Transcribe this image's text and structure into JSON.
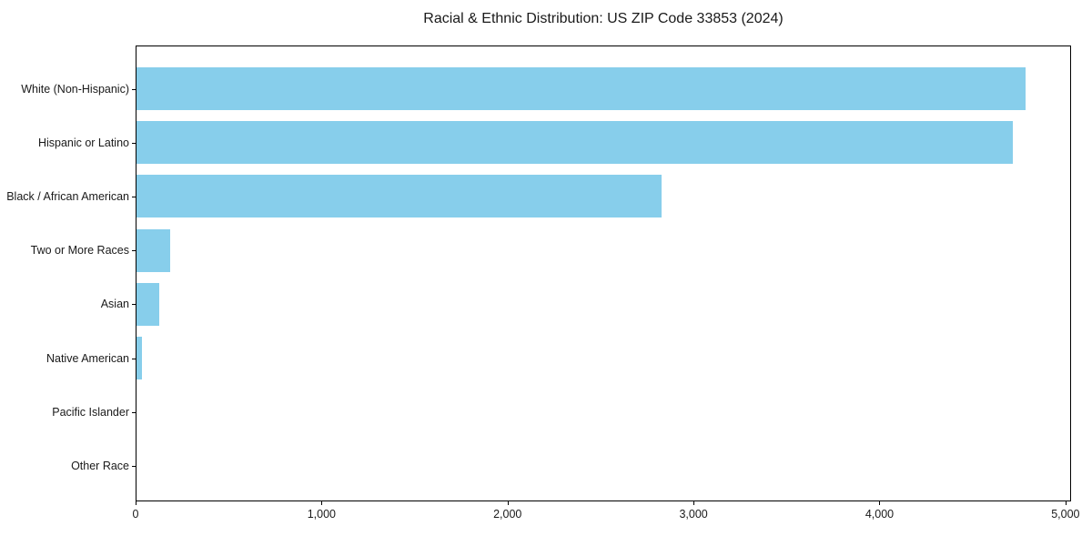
{
  "chart_data": {
    "type": "bar",
    "orientation": "horizontal",
    "title": "Racial & Ethnic Distribution: US ZIP Code 33853 (2024)",
    "categories": [
      "White (Non-Hispanic)",
      "Hispanic or Latino",
      "Black / African American",
      "Two or More Races",
      "Asian",
      "Native American",
      "Pacific Islander",
      "Other Race"
    ],
    "values": [
      4790,
      4720,
      2830,
      180,
      125,
      28,
      0,
      0
    ],
    "xlabel": "",
    "ylabel": "",
    "xlim": [
      0,
      5030
    ],
    "xticks": [
      0,
      1000,
      2000,
      3000,
      4000,
      5000
    ],
    "xtick_labels": [
      "0",
      "1,000",
      "2,000",
      "3,000",
      "4,000",
      "5,000"
    ],
    "bar_color": "#87CEEB",
    "axis_color": "#000000",
    "text_color": "#1a1a1a",
    "background_color": "#ffffff",
    "grid": false,
    "legend_position": "none"
  }
}
